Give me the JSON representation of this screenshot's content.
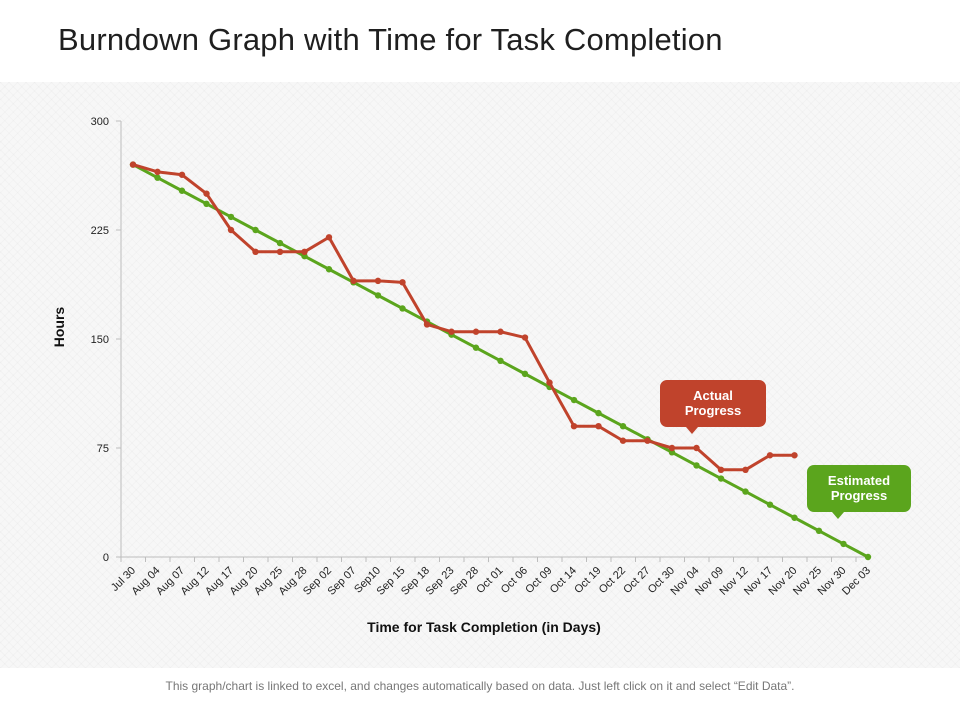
{
  "page": {
    "title": "Burndown Graph with Time for Task Completion",
    "footnote": "This graph/chart is linked to excel, and changes automatically based on data. Just left click on it and select “Edit Data”."
  },
  "chart_data": {
    "type": "line",
    "title": "",
    "xlabel": "Time for Task Completion (in Days)",
    "ylabel": "Hours",
    "ylim": [
      0,
      300
    ],
    "yticks": [
      0,
      75,
      150,
      225,
      300
    ],
    "grid": false,
    "categories": [
      "Jul 30",
      "Aug 04",
      "Aug 07",
      "Aug 12",
      "Aug 17",
      "Aug 20",
      "Aug 25",
      "Aug 28",
      "Sep 02",
      "Sep 07",
      "Sep10",
      "Sep 15",
      "Sep 18",
      "Sep 23",
      "Sep 28",
      "Oct 01",
      "Oct 06",
      "Oct 09",
      "Oct 14",
      "Oct 19",
      "Oct 22",
      "Oct 27",
      "Oct 30",
      "Nov 04",
      "Nov 09",
      "Nov 12",
      "Nov 17",
      "Nov 20",
      "Nov 25",
      "Nov 30",
      "Dec 03"
    ],
    "series": [
      {
        "name": "Estimated Progress",
        "color": "#5ba51d",
        "values": [
          270,
          261,
          252,
          243,
          234,
          225,
          216,
          207,
          198,
          189,
          180,
          171,
          162,
          153,
          144,
          135,
          126,
          117,
          108,
          99,
          90,
          81,
          72,
          63,
          54,
          45,
          36,
          27,
          18,
          9,
          0
        ]
      },
      {
        "name": "Actual Progress",
        "color": "#c0432c",
        "values": [
          270,
          265,
          263,
          250,
          225,
          210,
          210,
          210,
          220,
          190,
          190,
          189,
          160,
          155,
          155,
          155,
          151,
          120,
          90,
          90,
          80,
          80,
          75,
          75,
          60,
          60,
          70,
          70,
          null,
          null,
          null
        ]
      }
    ],
    "annotations": [
      {
        "text_lines": [
          "Actual",
          "Progress"
        ],
        "series": "Actual Progress",
        "color": "#c0432c"
      },
      {
        "text_lines": [
          "Estimated",
          "Progress"
        ],
        "series": "Estimated Progress",
        "color": "#5ba51d"
      }
    ]
  }
}
